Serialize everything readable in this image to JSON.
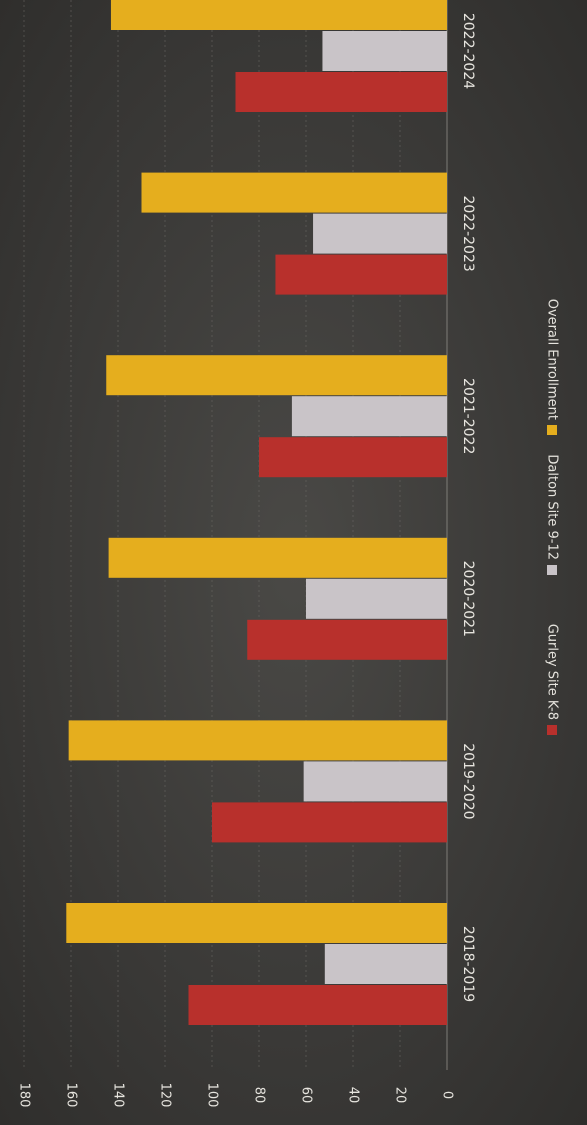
{
  "chart_data": {
    "type": "bar",
    "orientation": "rotated-90-clockwise",
    "categories": [
      "2018-2019",
      "2019-2020",
      "2020-2021",
      "2021-2022",
      "2022-2023",
      "2022-2024"
    ],
    "series": [
      {
        "name": "Gurley Site K-8",
        "values": [
          110,
          100,
          85,
          80,
          73,
          90
        ],
        "color": "#b8302c"
      },
      {
        "name": "Dalton Site 9-12",
        "values": [
          52,
          61,
          60,
          66,
          57,
          53
        ],
        "color": "#c9c4c8"
      },
      {
        "name": "Overall Enrollment",
        "values": [
          162,
          161,
          144,
          145,
          130,
          143
        ],
        "color": "#e5ae1e"
      }
    ],
    "ylim": [
      0,
      180
    ],
    "yticks": [
      0,
      20,
      40,
      60,
      80,
      100,
      120,
      140,
      160,
      180
    ],
    "grid": true,
    "legend": "bottom"
  }
}
